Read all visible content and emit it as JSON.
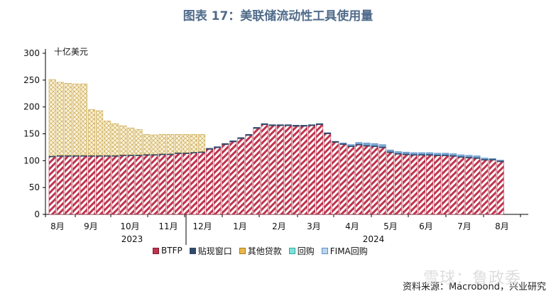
{
  "title": "图表 17：美联储流动性工具使用量",
  "source": "资料来源：Macrobond，兴业研究",
  "watermark": "雪球：鲁政委",
  "chart_data": {
    "type": "bar",
    "stacked": true,
    "unit_label": "十亿美元",
    "ylim": [
      0,
      300
    ],
    "yticks": [
      0,
      50,
      100,
      150,
      200,
      250,
      300
    ],
    "month_labels": [
      "8月",
      "9月",
      "10月",
      "11月",
      "12月",
      "1月",
      "2月",
      "3月",
      "4月",
      "5月",
      "6月",
      "7月",
      "8月"
    ],
    "year_labels": [
      "2023",
      "2024"
    ],
    "grid": false,
    "legend_position": "bottom",
    "series": [
      {
        "name": "BTFP",
        "color": "#c0334d",
        "values": [
          107,
          108,
          108,
          108,
          108,
          108,
          108,
          108,
          108,
          109,
          109,
          109,
          110,
          110,
          111,
          111,
          113,
          113,
          114,
          115,
          121,
          124,
          130,
          135,
          141,
          147,
          160,
          167,
          165,
          165,
          165,
          164,
          164,
          165,
          167,
          150,
          134,
          130,
          126,
          129,
          127,
          126,
          124,
          115,
          112,
          111,
          110,
          110,
          110,
          109,
          109,
          108,
          106,
          105,
          104,
          101,
          101,
          98
        ]
      },
      {
        "name": "贴现窗口",
        "color": "#2f4a6b",
        "values": [
          2,
          2,
          2,
          2,
          2,
          2,
          2,
          2,
          2,
          2,
          2,
          2,
          2,
          2,
          2,
          2,
          2,
          2,
          2,
          2,
          2,
          2,
          2,
          2,
          2,
          2,
          2,
          2,
          2,
          2,
          2,
          2,
          2,
          2,
          2,
          2,
          2,
          2,
          2,
          2,
          2,
          2,
          2,
          2,
          2,
          2,
          2,
          2,
          2,
          2,
          2,
          2,
          2,
          2,
          2,
          2,
          2,
          2
        ]
      },
      {
        "name": "其他贷款",
        "color": "#d9a23a",
        "values": [
          142,
          136,
          134,
          133,
          133,
          85,
          83,
          64,
          59,
          54,
          50,
          47,
          37,
          36,
          36,
          36,
          34,
          34,
          33,
          32,
          0,
          0,
          0,
          0,
          0,
          0,
          0,
          0,
          0,
          0,
          0,
          0,
          0,
          0,
          0,
          0,
          0,
          0,
          0,
          0,
          0,
          0,
          0,
          0,
          0,
          0,
          0,
          0,
          0,
          0,
          0,
          0,
          0,
          0,
          0,
          0,
          0,
          0
        ]
      },
      {
        "name": "回购",
        "color": "#48c9c3",
        "values": [
          0,
          0,
          0,
          0,
          0,
          0,
          0,
          0,
          0,
          0,
          0,
          0,
          0,
          0,
          0,
          0,
          0,
          0,
          0,
          0,
          0,
          0,
          0,
          0,
          0,
          0,
          0,
          0,
          0,
          0,
          0,
          0,
          0,
          0,
          0,
          0,
          0,
          0,
          0,
          0,
          0,
          0,
          0,
          0,
          0,
          0,
          0,
          0,
          0,
          0,
          0,
          0,
          0,
          0,
          0,
          0,
          0,
          0
        ]
      },
      {
        "name": "FIMA回购",
        "color": "#7fa9d6",
        "values": [
          0,
          0,
          0,
          0,
          0,
          0,
          0,
          0,
          0,
          0,
          0,
          0,
          0,
          0,
          0,
          0,
          0,
          0,
          0,
          0,
          0,
          0,
          0,
          0,
          0,
          0,
          0,
          0,
          0,
          0,
          0,
          0,
          0,
          0,
          0,
          0,
          0,
          1,
          2,
          3,
          4,
          4,
          4,
          3,
          3,
          3,
          3,
          3,
          3,
          3,
          3,
          3,
          3,
          3,
          3,
          2,
          1,
          1
        ]
      }
    ]
  }
}
